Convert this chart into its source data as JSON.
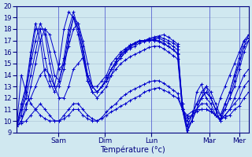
{
  "xlabel": "Température (°c)",
  "ylim": [
    9,
    20
  ],
  "yticks": [
    9,
    10,
    11,
    12,
    13,
    14,
    15,
    16,
    17,
    18,
    19,
    20
  ],
  "background_color": "#d0e8f0",
  "grid_color": "#b0c8d8",
  "line_color": "#0000cc",
  "day_labels": [
    "Sam",
    "Dim",
    "Lun",
    "Mar",
    "Mer"
  ],
  "day_positions": [
    0.18,
    0.38,
    0.58,
    0.83,
    0.96
  ],
  "num_points": 50,
  "series": [
    [
      9.5,
      11,
      13,
      16,
      18.5,
      17,
      14,
      13,
      13,
      15,
      18,
      19.5,
      19,
      17.5,
      15.5,
      13.5,
      12.5,
      12,
      12.5,
      13,
      14,
      15,
      15.5,
      16,
      16.5,
      16.8,
      17,
      17,
      17.2,
      17.3,
      17.4,
      17.5,
      17.3,
      17.0,
      16.7,
      11,
      9.2,
      10,
      12.5,
      13.2,
      12,
      11.5,
      10.5,
      12,
      13,
      14,
      15,
      16,
      17,
      17.2
    ],
    [
      9.5,
      11,
      12,
      14,
      16,
      18,
      18,
      16,
      14,
      13.5,
      15,
      17.5,
      19,
      18,
      16,
      14,
      13,
      13,
      13.5,
      14,
      15,
      15.5,
      16,
      16.3,
      16.6,
      16.8,
      17,
      17,
      17.1,
      17.2,
      17.3,
      17.2,
      17,
      16.8,
      16.5,
      11.5,
      9.5,
      10.5,
      11.5,
      12.5,
      13,
      12,
      11,
      10,
      11.5,
      12.5,
      14,
      15,
      16.5,
      17.5
    ],
    [
      9.5,
      10.5,
      12.5,
      15,
      17,
      18.5,
      17.5,
      15,
      13,
      13,
      14.5,
      17,
      19,
      18.5,
      16.5,
      14,
      12.5,
      12.5,
      13,
      13.5,
      14.5,
      15.2,
      15.7,
      16.1,
      16.4,
      16.7,
      16.9,
      17,
      17,
      17.1,
      17.2,
      17,
      16.8,
      16.5,
      16.2,
      11,
      9,
      10,
      11,
      12,
      13,
      12.5,
      11.5,
      10.5,
      11,
      12,
      13,
      14.5,
      16,
      17
    ],
    [
      9.5,
      11.5,
      13,
      15.5,
      18,
      18,
      15.5,
      13.5,
      12.5,
      13.5,
      15.5,
      18,
      19.5,
      18,
      16,
      13.5,
      12.5,
      12.5,
      13,
      13.8,
      14.5,
      15.2,
      15.8,
      16.2,
      16.6,
      16.8,
      17,
      17,
      17,
      17,
      17,
      16.8,
      16.5,
      16.2,
      15.8,
      11.5,
      9.5,
      10,
      11,
      12,
      12.5,
      12,
      11,
      10.5,
      11.5,
      12.5,
      14,
      15.5,
      17,
      17.5
    ],
    [
      9.5,
      10,
      11,
      13,
      15,
      17,
      18,
      17.5,
      16,
      14.5,
      15,
      16.5,
      18,
      18.5,
      17,
      15,
      13,
      12.5,
      13,
      13.5,
      14.5,
      15,
      15.5,
      16,
      16.3,
      16.5,
      16.8,
      16.9,
      17,
      17,
      16.9,
      16.7,
      16.5,
      16.2,
      15.9,
      11,
      9.5,
      10.5,
      11.5,
      12,
      12.5,
      12,
      11,
      10,
      11,
      12,
      13.5,
      15,
      16.5,
      17
    ],
    [
      9.5,
      10,
      11.5,
      12,
      13,
      14,
      14.5,
      14,
      13,
      12,
      12,
      13,
      14.5,
      15,
      15.5,
      14,
      13,
      12.5,
      13,
      13.5,
      14,
      14.5,
      15,
      15.3,
      15.6,
      15.8,
      16,
      16.2,
      16.4,
      16.5,
      16.5,
      16.3,
      16,
      15.7,
      15.4,
      11,
      10,
      10.5,
      11,
      11.5,
      11.5,
      11,
      10.5,
      10,
      10.5,
      11,
      12,
      13,
      14,
      14.5
    ],
    [
      9.5,
      9.8,
      10,
      10.5,
      11,
      11.5,
      11,
      10.5,
      10,
      10,
      10.5,
      11,
      11.5,
      11.5,
      11,
      10.5,
      10.2,
      10,
      10.3,
      10.8,
      11.2,
      11.5,
      12,
      12.3,
      12.6,
      12.8,
      13,
      13.2,
      13.4,
      13.5,
      13.5,
      13.3,
      13,
      12.7,
      12.4,
      11,
      10.3,
      10.5,
      10.8,
      11,
      11,
      10.8,
      10.5,
      10.2,
      10.5,
      11,
      11.5,
      12,
      13,
      13.5
    ],
    [
      9.5,
      14,
      12.5,
      11.5,
      11,
      10.5,
      10.2,
      10,
      10,
      10,
      10.2,
      10.5,
      11,
      11,
      10.5,
      10.2,
      10,
      10,
      10.2,
      10.5,
      10.8,
      11,
      11.3,
      11.5,
      11.8,
      12,
      12.2,
      12.5,
      12.7,
      12.8,
      12.9,
      12.7,
      12.5,
      12.2,
      12,
      11,
      10.5,
      10.8,
      11,
      11,
      11,
      10.8,
      10.5,
      10.2,
      10.3,
      10.5,
      11,
      11.3,
      12,
      12.5
    ]
  ]
}
